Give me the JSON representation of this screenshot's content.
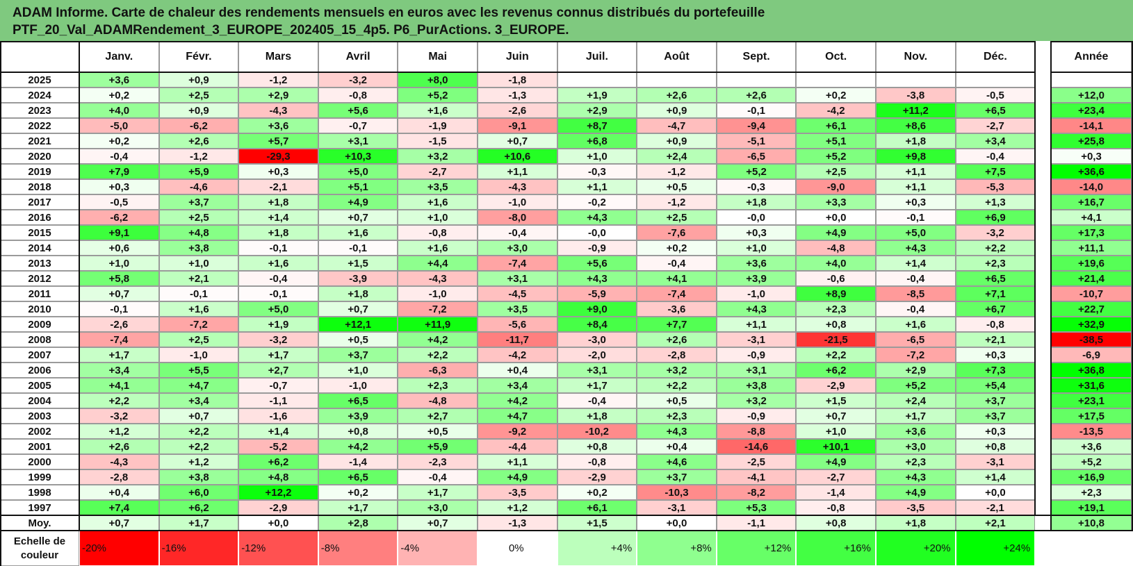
{
  "title": {
    "line1": "ADAM Informe. Carte de chaleur des rendements mensuels en euros avec les revenus connus distribués du portefeuille",
    "line2": "PTF_20_Val_ADAMRendement_3_EUROPE_202405_15_4p5. P6_PurActions. 3_EUROPE."
  },
  "colors": {
    "title_bg": "#7fc97f",
    "negative_max": "#ff0000",
    "neutral": "#ffffff",
    "positive_max": "#00ff00"
  },
  "chart_data": {
    "type": "heatmap",
    "columns": [
      "Janv.",
      "Févr.",
      "Mars",
      "Avril",
      "Mai",
      "Juin",
      "Juil.",
      "Août",
      "Sept.",
      "Oct.",
      "Nov.",
      "Déc."
    ],
    "year_column": "Année",
    "average_label": "Moy.",
    "rows": [
      {
        "year": "2025",
        "months": [
          "+3,6",
          "+0,9",
          "-1,2",
          "-3,2",
          "+8,0",
          "-1,8",
          "",
          "",
          "",
          "",
          "",
          ""
        ],
        "annual": ""
      },
      {
        "year": "2024",
        "months": [
          "+0,2",
          "+2,5",
          "+2,9",
          "-0,8",
          "+5,2",
          "-1,3",
          "+1,9",
          "+2,6",
          "+2,6",
          "+0,2",
          "-3,8",
          "-0,5"
        ],
        "annual": "+12,0"
      },
      {
        "year": "2023",
        "months": [
          "+4,0",
          "+0,9",
          "-4,3",
          "+5,6",
          "+1,6",
          "-2,6",
          "+2,9",
          "+0,9",
          "-0,1",
          "-4,2",
          "+11,2",
          "+6,5"
        ],
        "annual": "+23,4"
      },
      {
        "year": "2022",
        "months": [
          "-5,0",
          "-6,2",
          "+3,6",
          "-0,7",
          "-1,9",
          "-9,1",
          "+8,7",
          "-4,7",
          "-9,4",
          "+6,1",
          "+8,6",
          "-2,7"
        ],
        "annual": "-14,1"
      },
      {
        "year": "2021",
        "months": [
          "+0,2",
          "+2,6",
          "+5,7",
          "+3,1",
          "-1,5",
          "+0,7",
          "+6,8",
          "+0,9",
          "-5,1",
          "+5,1",
          "+1,8",
          "+3,4"
        ],
        "annual": "+25,8"
      },
      {
        "year": "2020",
        "months": [
          "-0,4",
          "-1,2",
          "-29,3",
          "+10,3",
          "+3,2",
          "+10,6",
          "+1,0",
          "+2,4",
          "-6,5",
          "+5,2",
          "+9,8",
          "-0,4"
        ],
        "annual": "+0,3"
      },
      {
        "year": "2019",
        "months": [
          "+7,9",
          "+5,9",
          "+0,3",
          "+5,0",
          "-2,7",
          "+1,1",
          "-0,3",
          "-1,2",
          "+5,2",
          "+2,5",
          "+1,1",
          "+7,5"
        ],
        "annual": "+36,6"
      },
      {
        "year": "2018",
        "months": [
          "+0,3",
          "-4,6",
          "-2,1",
          "+5,1",
          "+3,5",
          "-4,3",
          "+1,1",
          "+0,5",
          "-0,3",
          "-9,0",
          "+1,1",
          "-5,3"
        ],
        "annual": "-14,0"
      },
      {
        "year": "2017",
        "months": [
          "-0,5",
          "+3,7",
          "+1,8",
          "+4,9",
          "+1,6",
          "-1,0",
          "-0,2",
          "-1,2",
          "+1,8",
          "+3,3",
          "+0,3",
          "+1,3"
        ],
        "annual": "+16,7"
      },
      {
        "year": "2016",
        "months": [
          "-6,2",
          "+2,5",
          "+1,4",
          "+0,7",
          "+1,0",
          "-8,0",
          "+4,3",
          "+2,5",
          "-0,0",
          "+0,0",
          "-0,1",
          "+6,9"
        ],
        "annual": "+4,1"
      },
      {
        "year": "2015",
        "months": [
          "+9,1",
          "+4,8",
          "+1,8",
          "+1,6",
          "-0,8",
          "-0,4",
          "-0,0",
          "-7,6",
          "+0,3",
          "+4,9",
          "+5,0",
          "-3,2"
        ],
        "annual": "+17,3"
      },
      {
        "year": "2014",
        "months": [
          "+0,6",
          "+3,8",
          "-0,1",
          "-0,1",
          "+1,6",
          "+3,0",
          "-0,9",
          "+0,2",
          "+1,0",
          "-4,8",
          "+4,3",
          "+2,2"
        ],
        "annual": "+11,1"
      },
      {
        "year": "2013",
        "months": [
          "+1,0",
          "+1,0",
          "+1,6",
          "+1,5",
          "+4,4",
          "-7,4",
          "+5,6",
          "-0,4",
          "+3,6",
          "+4,0",
          "+1,4",
          "+2,3"
        ],
        "annual": "+19,6"
      },
      {
        "year": "2012",
        "months": [
          "+5,8",
          "+2,1",
          "-0,4",
          "-3,9",
          "-4,3",
          "+3,1",
          "+4,3",
          "+4,1",
          "+3,9",
          "-0,6",
          "-0,4",
          "+6,5"
        ],
        "annual": "+21,4"
      },
      {
        "year": "2011",
        "months": [
          "+0,7",
          "-0,1",
          "-0,1",
          "+1,8",
          "-1,0",
          "-4,5",
          "-5,9",
          "-7,4",
          "-1,0",
          "+8,9",
          "-8,5",
          "+7,1"
        ],
        "annual": "-10,7"
      },
      {
        "year": "2010",
        "months": [
          "-0,1",
          "+1,6",
          "+5,0",
          "+0,7",
          "-7,2",
          "+3,5",
          "+9,0",
          "-3,6",
          "+4,3",
          "+2,3",
          "-0,4",
          "+6,7"
        ],
        "annual": "+22,7"
      },
      {
        "year": "2009",
        "months": [
          "-2,6",
          "-7,2",
          "+1,9",
          "+12,1",
          "+11,9",
          "-5,6",
          "+8,4",
          "+7,7",
          "+1,1",
          "+0,8",
          "+1,6",
          "-0,8"
        ],
        "annual": "+32,9"
      },
      {
        "year": "2008",
        "months": [
          "-7,4",
          "+2,5",
          "-3,2",
          "+0,5",
          "+4,2",
          "-11,7",
          "-3,0",
          "+2,6",
          "-3,1",
          "-21,5",
          "-6,5",
          "+2,1"
        ],
        "annual": "-38,5"
      },
      {
        "year": "2007",
        "months": [
          "+1,7",
          "-1,0",
          "+1,7",
          "+3,7",
          "+2,2",
          "-4,2",
          "-2,0",
          "-2,8",
          "-0,9",
          "+2,2",
          "-7,2",
          "+0,3"
        ],
        "annual": "-6,9"
      },
      {
        "year": "2006",
        "months": [
          "+3,4",
          "+5,5",
          "+2,7",
          "+1,0",
          "-6,3",
          "+0,4",
          "+3,1",
          "+3,2",
          "+3,1",
          "+6,2",
          "+2,9",
          "+7,3"
        ],
        "annual": "+36,8"
      },
      {
        "year": "2005",
        "months": [
          "+4,1",
          "+4,7",
          "-0,7",
          "-1,0",
          "+2,3",
          "+3,4",
          "+1,7",
          "+2,2",
          "+3,8",
          "-2,9",
          "+5,2",
          "+5,4"
        ],
        "annual": "+31,6"
      },
      {
        "year": "2004",
        "months": [
          "+2,2",
          "+3,4",
          "-1,1",
          "+6,5",
          "-4,8",
          "+4,2",
          "-0,4",
          "+0,5",
          "+3,2",
          "+1,5",
          "+2,4",
          "+3,7"
        ],
        "annual": "+23,1"
      },
      {
        "year": "2003",
        "months": [
          "-3,2",
          "+0,7",
          "-1,6",
          "+3,9",
          "+2,7",
          "+4,7",
          "+1,8",
          "+2,3",
          "-0,9",
          "+0,7",
          "+1,7",
          "+3,7"
        ],
        "annual": "+17,5"
      },
      {
        "year": "2002",
        "months": [
          "+1,2",
          "+2,2",
          "+1,4",
          "+0,8",
          "+0,5",
          "-9,2",
          "-10,2",
          "+4,3",
          "-8,8",
          "+1,0",
          "+3,6",
          "+0,3"
        ],
        "annual": "-13,5"
      },
      {
        "year": "2001",
        "months": [
          "+2,6",
          "+2,2",
          "-5,2",
          "+4,2",
          "+5,9",
          "-4,4",
          "+0,8",
          "+0,4",
          "-14,6",
          "+10,1",
          "+3,0",
          "+0,8"
        ],
        "annual": "+3,6"
      },
      {
        "year": "2000",
        "months": [
          "-4,3",
          "+1,2",
          "+6,2",
          "-1,4",
          "-2,3",
          "+1,1",
          "-0,8",
          "+4,6",
          "-2,5",
          "+4,9",
          "+2,3",
          "-3,1"
        ],
        "annual": "+5,2"
      },
      {
        "year": "1999",
        "months": [
          "-2,8",
          "+3,8",
          "+4,8",
          "+6,5",
          "-0,4",
          "+4,9",
          "-2,9",
          "+3,7",
          "-4,1",
          "-2,7",
          "+4,3",
          "+1,4"
        ],
        "annual": "+16,9"
      },
      {
        "year": "1998",
        "months": [
          "+0,4",
          "+6,0",
          "+12,2",
          "+0,2",
          "+1,7",
          "-3,5",
          "+0,2",
          "-10,3",
          "-8,2",
          "-1,4",
          "+4,9",
          "+0,0"
        ],
        "annual": "+2,3"
      },
      {
        "year": "1997",
        "months": [
          "+7,4",
          "+6,2",
          "-2,9",
          "+1,7",
          "+3,0",
          "+1,2",
          "+6,1",
          "-3,1",
          "+5,3",
          "-0,8",
          "-3,5",
          "-2,1"
        ],
        "annual": "+19,1"
      }
    ],
    "average": {
      "months": [
        "+0,7",
        "+1,7",
        "+0,0",
        "+2,8",
        "+0,7",
        "-1,3",
        "+1,5",
        "+0,0",
        "-1,1",
        "+0,8",
        "+1,8",
        "+2,1"
      ],
      "annual": "+10,8"
    },
    "legend": {
      "label_line1": "Echelle de",
      "label_line2": "couleur",
      "stops": [
        "-20%",
        "-16%",
        "-12%",
        "-8%",
        "-4%",
        "0%",
        "+4%",
        "+8%",
        "+12%",
        "+16%",
        "+20%",
        "+24%"
      ],
      "stop_values": [
        -20,
        -16,
        -12,
        -8,
        -4,
        0,
        4,
        8,
        12,
        16,
        20,
        24
      ]
    }
  }
}
